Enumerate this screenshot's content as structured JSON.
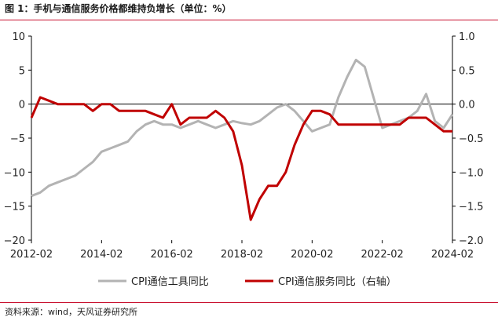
{
  "header": {
    "title": "图 1：手机与通信服务价格都维持负增长（单位：%）"
  },
  "footer": {
    "source": "资料来源：wind，天风证券研究所"
  },
  "chart_data": {
    "type": "line",
    "title": "图 1：手机与通信服务价格都维持负增长（单位：%）",
    "unit": "%",
    "x_tick_labels": [
      "2012-02",
      "2014-02",
      "2016-02",
      "2018-02",
      "2020-02",
      "2022-02",
      "2024-02"
    ],
    "x_range": [
      "2012-02",
      "2024-02"
    ],
    "y_left": {
      "range": [
        -20,
        10
      ],
      "ticks": [
        10,
        5,
        0,
        -5,
        -10,
        -15,
        -20
      ]
    },
    "y_right": {
      "range": [
        -2.0,
        1.0
      ],
      "ticks": [
        1.0,
        0.5,
        0.0,
        -0.5,
        -1.0,
        -1.5,
        -2.0
      ]
    },
    "grid": false,
    "legend_position": "bottom",
    "colors": {
      "left_series": "#b3b3b3",
      "right_series": "#c00000",
      "axis": "#000000"
    },
    "series": [
      {
        "name": "CPI通信工具同比",
        "axis": "left",
        "points": [
          [
            "2012-02",
            -13.5
          ],
          [
            "2012-05",
            -13
          ],
          [
            "2012-08",
            -12
          ],
          [
            "2012-11",
            -11.5
          ],
          [
            "2013-02",
            -11
          ],
          [
            "2013-05",
            -10.5
          ],
          [
            "2013-08",
            -9.5
          ],
          [
            "2013-11",
            -8.5
          ],
          [
            "2014-02",
            -7
          ],
          [
            "2014-05",
            -6.5
          ],
          [
            "2014-08",
            -6
          ],
          [
            "2014-11",
            -5.5
          ],
          [
            "2015-02",
            -4
          ],
          [
            "2015-05",
            -3
          ],
          [
            "2015-08",
            -2.5
          ],
          [
            "2015-11",
            -3
          ],
          [
            "2016-02",
            -3
          ],
          [
            "2016-05",
            -3.5
          ],
          [
            "2016-08",
            -3
          ],
          [
            "2016-11",
            -2.5
          ],
          [
            "2017-02",
            -3
          ],
          [
            "2017-05",
            -3.5
          ],
          [
            "2017-08",
            -3
          ],
          [
            "2017-11",
            -2.5
          ],
          [
            "2018-02",
            -2.8
          ],
          [
            "2018-05",
            -3
          ],
          [
            "2018-08",
            -2.5
          ],
          [
            "2018-11",
            -1.5
          ],
          [
            "2019-02",
            -0.5
          ],
          [
            "2019-05",
            0
          ],
          [
            "2019-08",
            -1
          ],
          [
            "2019-11",
            -2.5
          ],
          [
            "2020-02",
            -4
          ],
          [
            "2020-05",
            -3.5
          ],
          [
            "2020-08",
            -3
          ],
          [
            "2020-11",
            1
          ],
          [
            "2021-02",
            4
          ],
          [
            "2021-05",
            6.5
          ],
          [
            "2021-08",
            5.5
          ],
          [
            "2021-11",
            1
          ],
          [
            "2022-02",
            -3.5
          ],
          [
            "2022-05",
            -3
          ],
          [
            "2022-08",
            -2.5
          ],
          [
            "2022-11",
            -2
          ],
          [
            "2023-02",
            -1
          ],
          [
            "2023-05",
            1.5
          ],
          [
            "2023-08",
            -2.5
          ],
          [
            "2023-11",
            -3.5
          ],
          [
            "2024-02",
            -1.5
          ]
        ]
      },
      {
        "name": "CPI通信服务同比（右轴）",
        "axis": "right",
        "points": [
          [
            "2012-02",
            -0.2
          ],
          [
            "2012-05",
            0.1
          ],
          [
            "2012-08",
            0.05
          ],
          [
            "2012-11",
            0.0
          ],
          [
            "2013-02",
            0.0
          ],
          [
            "2013-05",
            0.0
          ],
          [
            "2013-08",
            0.0
          ],
          [
            "2013-11",
            -0.1
          ],
          [
            "2014-02",
            0.0
          ],
          [
            "2014-05",
            0.0
          ],
          [
            "2014-08",
            -0.1
          ],
          [
            "2014-11",
            -0.1
          ],
          [
            "2015-02",
            -0.1
          ],
          [
            "2015-05",
            -0.1
          ],
          [
            "2015-08",
            -0.15
          ],
          [
            "2015-11",
            -0.2
          ],
          [
            "2016-02",
            0.0
          ],
          [
            "2016-05",
            -0.3
          ],
          [
            "2016-08",
            -0.2
          ],
          [
            "2016-11",
            -0.2
          ],
          [
            "2017-02",
            -0.2
          ],
          [
            "2017-05",
            -0.1
          ],
          [
            "2017-08",
            -0.2
          ],
          [
            "2017-11",
            -0.4
          ],
          [
            "2018-02",
            -0.9
          ],
          [
            "2018-05",
            -1.7
          ],
          [
            "2018-08",
            -1.4
          ],
          [
            "2018-11",
            -1.2
          ],
          [
            "2019-02",
            -1.2
          ],
          [
            "2019-05",
            -1.0
          ],
          [
            "2019-08",
            -0.6
          ],
          [
            "2019-11",
            -0.3
          ],
          [
            "2020-02",
            -0.1
          ],
          [
            "2020-05",
            -0.1
          ],
          [
            "2020-08",
            -0.15
          ],
          [
            "2020-11",
            -0.3
          ],
          [
            "2021-02",
            -0.3
          ],
          [
            "2021-05",
            -0.3
          ],
          [
            "2021-08",
            -0.3
          ],
          [
            "2021-11",
            -0.3
          ],
          [
            "2022-02",
            -0.3
          ],
          [
            "2022-05",
            -0.3
          ],
          [
            "2022-08",
            -0.3
          ],
          [
            "2022-11",
            -0.2
          ],
          [
            "2023-02",
            -0.2
          ],
          [
            "2023-05",
            -0.2
          ],
          [
            "2023-08",
            -0.3
          ],
          [
            "2023-11",
            -0.4
          ],
          [
            "2024-02",
            -0.4
          ]
        ]
      }
    ]
  }
}
